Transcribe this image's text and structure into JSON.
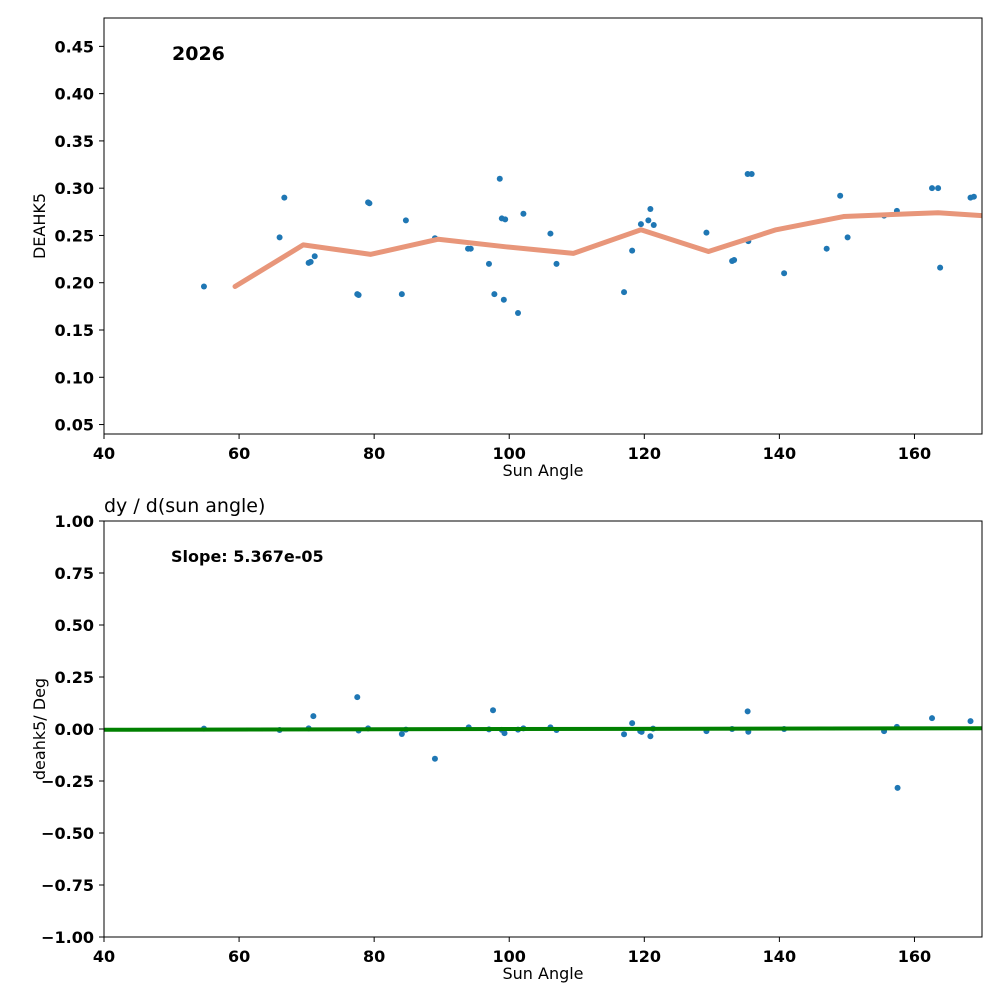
{
  "chart_data": [
    {
      "type": "scatter",
      "title": "",
      "annotation": "2026",
      "xlabel": "Sun Angle",
      "ylabel": "DEAHK5",
      "xlim": [
        40,
        170
      ],
      "ylim": [
        0.04,
        0.48
      ],
      "xticks": [
        40,
        60,
        80,
        100,
        120,
        140,
        160
      ],
      "yticks": [
        0.05,
        0.1,
        0.15,
        0.2,
        0.25,
        0.3,
        0.35,
        0.4,
        0.45
      ],
      "grid": false,
      "points_color": "#1f77b4",
      "line_color": "#e8967a",
      "series": [
        {
          "kind": "points",
          "x": [
            54.8,
            66.0,
            66.7,
            70.3,
            70.6,
            71.2,
            77.5,
            77.7,
            79.1,
            79.3,
            84.1,
            84.7,
            89.0,
            93.9,
            94.3,
            97.0,
            97.8,
            98.6,
            98.9,
            99.2,
            99.4,
            101.3,
            102.1,
            106.1,
            107.0,
            117.0,
            118.2,
            119.5,
            120.6,
            120.9,
            121.4,
            129.2,
            133.0,
            133.3,
            135.3,
            135.4,
            135.9,
            140.7,
            147.0,
            149.0,
            150.1,
            155.5,
            157.4,
            162.6,
            163.5,
            163.8,
            168.3,
            168.8
          ],
          "y": [
            0.196,
            0.248,
            0.29,
            0.221,
            0.222,
            0.228,
            0.188,
            0.187,
            0.285,
            0.284,
            0.188,
            0.266,
            0.247,
            0.236,
            0.236,
            0.22,
            0.188,
            0.31,
            0.268,
            0.182,
            0.267,
            0.168,
            0.273,
            0.252,
            0.22,
            0.19,
            0.234,
            0.262,
            0.266,
            0.278,
            0.261,
            0.253,
            0.223,
            0.224,
            0.315,
            0.244,
            0.315,
            0.21,
            0.236,
            0.292,
            0.248,
            0.271,
            0.276,
            0.3,
            0.3,
            0.216,
            0.29,
            0.291
          ]
        },
        {
          "kind": "line",
          "x": [
            59.4,
            69.5,
            79.5,
            89.5,
            99.5,
            109.5,
            119.5,
            129.5,
            139.5,
            149.5,
            159.5,
            163.5,
            170.0
          ],
          "y": [
            0.196,
            0.24,
            0.23,
            0.246,
            0.238,
            0.231,
            0.256,
            0.233,
            0.256,
            0.27,
            0.273,
            0.274,
            0.271
          ]
        }
      ]
    },
    {
      "type": "scatter",
      "title": "dy / d(sun angle)",
      "annotation": "Slope: 5.367e-05",
      "xlabel": "Sun Angle",
      "ylabel": "deahk5/ Deg",
      "xlim": [
        40,
        170
      ],
      "ylim": [
        -1.0,
        1.0
      ],
      "xticks": [
        40,
        60,
        80,
        100,
        120,
        140,
        160
      ],
      "yticks": [
        -1.0,
        -0.75,
        -0.5,
        -0.25,
        0.0,
        0.25,
        0.5,
        0.75,
        1.0
      ],
      "grid": false,
      "points_color": "#1f77b4",
      "line_color": "#008000",
      "series": [
        {
          "kind": "points",
          "x": [
            54.8,
            66.0,
            70.3,
            71.0,
            77.5,
            77.7,
            79.1,
            84.1,
            84.7,
            89.0,
            94.0,
            97.0,
            97.6,
            98.9,
            99.3,
            101.3,
            102.1,
            106.1,
            107.0,
            117.0,
            118.2,
            119.4,
            119.6,
            120.9,
            121.3,
            129.2,
            133.0,
            135.3,
            135.4,
            140.7,
            155.5,
            157.4,
            157.5,
            162.6,
            168.3
          ],
          "y": [
            0.002,
            -0.005,
            0.003,
            0.062,
            0.153,
            -0.007,
            0.003,
            -0.024,
            -0.003,
            -0.143,
            0.008,
            -0.002,
            0.09,
            -0.004,
            -0.02,
            -0.003,
            0.003,
            0.008,
            -0.005,
            -0.025,
            0.028,
            -0.01,
            -0.014,
            -0.035,
            0.002,
            -0.01,
            0.0,
            0.085,
            -0.013,
            0.0,
            -0.01,
            0.01,
            -0.283,
            0.052,
            0.038
          ]
        },
        {
          "kind": "fit",
          "x": [
            40,
            170
          ],
          "y": [
            -0.0035,
            0.0035
          ]
        }
      ]
    }
  ]
}
